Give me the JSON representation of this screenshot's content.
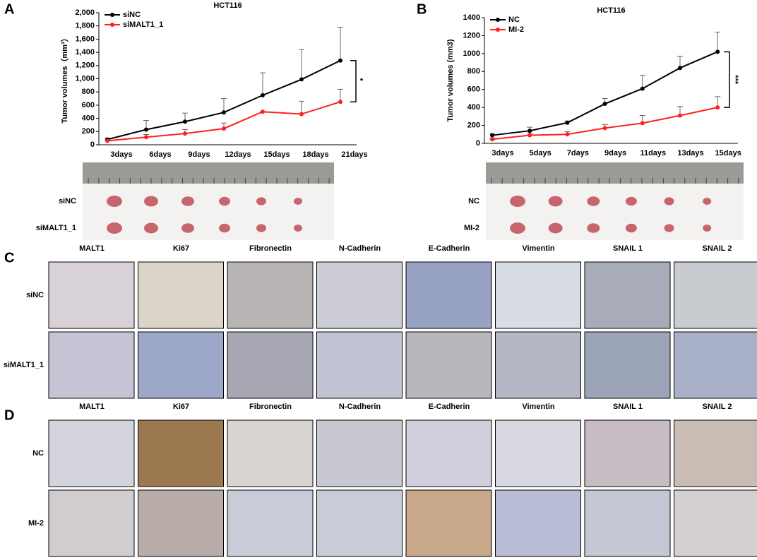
{
  "chart_data": [
    {
      "type": "line",
      "title": "HCT116",
      "y_label": "Tumor volumes（mm³）",
      "categories": [
        "3days",
        "6days",
        "9days",
        "12days",
        "15days",
        "18days",
        "21days"
      ],
      "ylim": [
        0,
        2000
      ],
      "yticks": [
        0,
        200,
        400,
        600,
        800,
        {
          "value": 1000,
          "label": "1,000"
        },
        {
          "value": 1200,
          "label": "1,200"
        },
        {
          "value": 1400,
          "label": "1,400"
        },
        {
          "value": 1600,
          "label": "1,600"
        },
        {
          "value": 1800,
          "label": "1,800"
        },
        {
          "value": 2000,
          "label": "2,000"
        }
      ],
      "series": [
        {
          "name": "siNC",
          "color": "#000000",
          "values": [
            80,
            230,
            350,
            490,
            750,
            990,
            1275
          ],
          "errors": [
            20,
            140,
            130,
            210,
            340,
            450,
            505
          ]
        },
        {
          "name": "siMALT1_1",
          "color": "#ff2020",
          "values": [
            60,
            115,
            170,
            245,
            500,
            465,
            650
          ],
          "errors": [
            10,
            40,
            60,
            85,
            0,
            195,
            190
          ]
        }
      ],
      "annotation": "*"
    },
    {
      "type": "line",
      "title": "HCT116",
      "y_label": "Tumor volumes (mm3)",
      "categories": [
        "3days",
        "5days",
        "7days",
        "9days",
        "11days",
        "13days",
        "15days"
      ],
      "ylim": [
        0,
        1400
      ],
      "yticks": [
        0,
        200,
        400,
        600,
        800,
        1000,
        1200,
        1400
      ],
      "series": [
        {
          "name": "NC",
          "color": "#000000",
          "values": [
            90,
            140,
            230,
            440,
            610,
            840,
            1020
          ],
          "errors": [
            15,
            40,
            20,
            60,
            150,
            130,
            220
          ]
        },
        {
          "name": "MI-2",
          "color": "#ff2020",
          "values": [
            45,
            90,
            100,
            170,
            225,
            310,
            400
          ],
          "errors": [
            15,
            20,
            30,
            40,
            85,
            100,
            120
          ]
        }
      ],
      "annotation": "***"
    }
  ],
  "panel_labels": [
    "A",
    "B",
    "C",
    "D"
  ],
  "tumor_rows": {
    "A": [
      "siNC",
      "siMALT1_1"
    ],
    "B": [
      "NC",
      "MI-2"
    ]
  },
  "ihc": {
    "C": {
      "columns": [
        "MALT1",
        "Ki67",
        "Fibronectin",
        "N-Cadherin",
        "E-Cadherin",
        "Vimentin",
        "SNAIL 1",
        "SNAIL 2"
      ],
      "rows": [
        "siNC",
        "siMALT1_1"
      ]
    },
    "D": {
      "columns": [
        "MALT1",
        "Ki67",
        "Fibronectin",
        "N-Cadherin",
        "E-Cadherin",
        "Vimentin",
        "SNAIL 1",
        "SNAIL 2"
      ],
      "rows": [
        "NC",
        "MI-2"
      ]
    }
  }
}
